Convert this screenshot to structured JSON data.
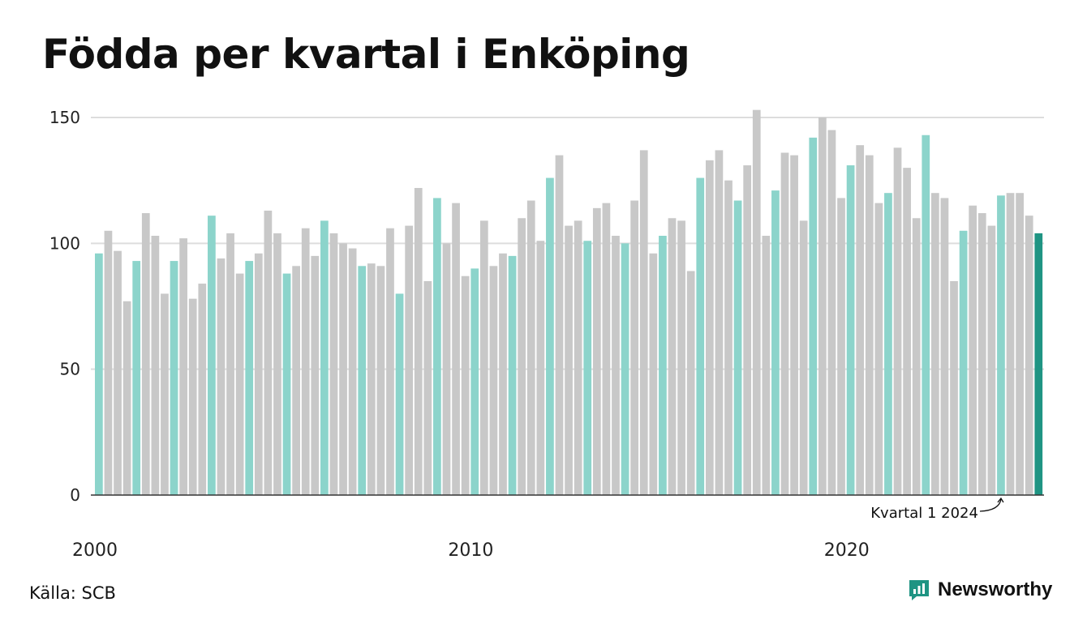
{
  "title": "Födda per kvartal i Enköping",
  "source": "Källa: SCB",
  "brand": "Newsworthy",
  "colors": {
    "q1": "#8cd4cb",
    "other": "#c8c8c8",
    "highlight": "#1f9483",
    "grid": "#dddddd",
    "axis": "#333333",
    "brand": "#1f9483"
  },
  "chart_data": {
    "type": "bar",
    "start_year": 2000,
    "x_tick_labels": [
      "2000",
      "2010",
      "2020"
    ],
    "y_ticks": [
      0,
      50,
      100,
      150
    ],
    "ylim": [
      0,
      150
    ],
    "annotation": "Kvartal 1 2024",
    "values": [
      96,
      105,
      97,
      77,
      93,
      112,
      103,
      80,
      93,
      102,
      78,
      84,
      111,
      94,
      104,
      88,
      93,
      96,
      113,
      104,
      88,
      91,
      106,
      95,
      109,
      104,
      100,
      98,
      91,
      92,
      91,
      106,
      80,
      107,
      122,
      85,
      118,
      100,
      116,
      87,
      90,
      109,
      91,
      96,
      95,
      110,
      117,
      101,
      126,
      135,
      107,
      109,
      101,
      114,
      116,
      103,
      100,
      117,
      137,
      96,
      103,
      110,
      109,
      89,
      126,
      133,
      137,
      125,
      117,
      131,
      153,
      103,
      121,
      136,
      135,
      109,
      142,
      150,
      145,
      118,
      131,
      139,
      135,
      116,
      120,
      138,
      130,
      110,
      143,
      120,
      118,
      85,
      105,
      115,
      112,
      107,
      119,
      120,
      120,
      111,
      104
    ]
  }
}
